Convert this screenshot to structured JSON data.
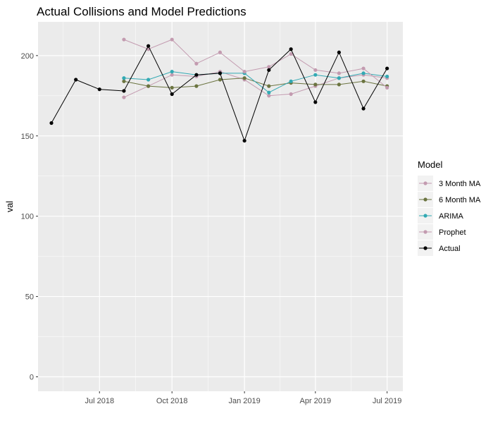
{
  "chart_data": {
    "type": "line",
    "title": "Actual Collisions and Model Predictions",
    "xlabel": "",
    "ylabel": "val",
    "xlim": [
      "2018-04-14",
      "2019-07-21"
    ],
    "ylim": [
      -9,
      221
    ],
    "grid": true,
    "x_ticks": [
      {
        "label": "Jul 2018",
        "date": "2018-07-01"
      },
      {
        "label": "Oct 2018",
        "date": "2018-10-01"
      },
      {
        "label": "Jan 2019",
        "date": "2019-01-01"
      },
      {
        "label": "Apr 2019",
        "date": "2019-04-01"
      },
      {
        "label": "Jul 2019",
        "date": "2019-07-01"
      }
    ],
    "y_ticks": [
      0,
      50,
      100,
      150,
      200
    ],
    "legend": {
      "title": "Model",
      "position": "right"
    },
    "series": [
      {
        "name": "3 Month MA",
        "color": "#C39BB0",
        "points": [
          [
            "2018-08-01",
            174
          ],
          [
            "2018-09-01",
            181
          ],
          [
            "2018-10-01",
            188
          ],
          [
            "2018-11-01",
            187
          ],
          [
            "2018-12-01",
            190
          ],
          [
            "2019-01-01",
            185
          ],
          [
            "2019-02-01",
            175
          ],
          [
            "2019-03-01",
            176
          ],
          [
            "2019-04-01",
            181
          ],
          [
            "2019-05-01",
            186
          ],
          [
            "2019-06-01",
            188
          ],
          [
            "2019-07-01",
            186
          ]
        ]
      },
      {
        "name": "6 Month MA",
        "color": "#6B7440",
        "points": [
          [
            "2018-08-01",
            184
          ],
          [
            "2018-09-01",
            181
          ],
          [
            "2018-10-01",
            180
          ],
          [
            "2018-11-01",
            181
          ],
          [
            "2018-12-01",
            185
          ],
          [
            "2019-01-01",
            186
          ],
          [
            "2019-02-01",
            181
          ],
          [
            "2019-03-01",
            183
          ],
          [
            "2019-04-01",
            182
          ],
          [
            "2019-05-01",
            182
          ],
          [
            "2019-06-01",
            184
          ],
          [
            "2019-07-01",
            181
          ]
        ]
      },
      {
        "name": "ARIMA",
        "color": "#32A9B3",
        "points": [
          [
            "2018-08-01",
            186
          ],
          [
            "2018-09-01",
            185
          ],
          [
            "2018-10-01",
            190
          ],
          [
            "2018-11-01",
            188
          ],
          [
            "2018-12-01",
            189
          ],
          [
            "2019-01-01",
            189
          ],
          [
            "2019-02-01",
            177
          ],
          [
            "2019-03-01",
            184
          ],
          [
            "2019-04-01",
            188
          ],
          [
            "2019-05-01",
            186
          ],
          [
            "2019-06-01",
            189
          ],
          [
            "2019-07-01",
            187
          ]
        ]
      },
      {
        "name": "Prophet",
        "color": "#C39BB0",
        "points": [
          [
            "2018-08-01",
            210
          ],
          [
            "2018-09-01",
            204
          ],
          [
            "2018-10-01",
            210
          ],
          [
            "2018-11-01",
            195
          ],
          [
            "2018-12-01",
            202
          ],
          [
            "2019-01-01",
            190
          ],
          [
            "2019-02-01",
            193
          ],
          [
            "2019-03-01",
            201
          ],
          [
            "2019-04-01",
            191
          ],
          [
            "2019-05-01",
            189
          ],
          [
            "2019-06-01",
            192
          ],
          [
            "2019-07-01",
            180
          ]
        ]
      },
      {
        "name": "Actual",
        "color": "#000000",
        "points": [
          [
            "2018-05-01",
            158
          ],
          [
            "2018-06-01",
            185
          ],
          [
            "2018-07-01",
            179
          ],
          [
            "2018-08-01",
            178
          ],
          [
            "2018-09-01",
            206
          ],
          [
            "2018-10-01",
            176
          ],
          [
            "2018-11-01",
            188
          ],
          [
            "2018-12-01",
            189
          ],
          [
            "2019-01-01",
            147
          ],
          [
            "2019-02-01",
            191
          ],
          [
            "2019-03-01",
            204
          ],
          [
            "2019-04-01",
            171
          ],
          [
            "2019-05-01",
            202
          ],
          [
            "2019-06-01",
            167
          ],
          [
            "2019-07-01",
            192
          ]
        ]
      }
    ]
  }
}
